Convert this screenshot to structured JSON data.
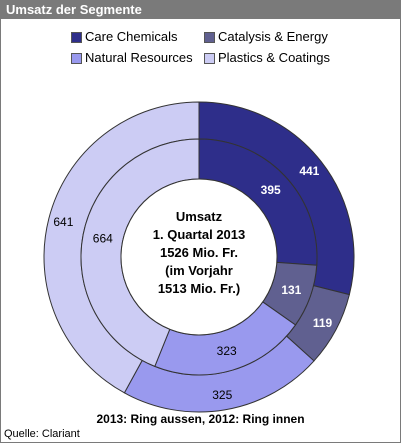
{
  "header": {
    "title": "Umsatz der Segmente"
  },
  "chart_data": {
    "type": "donut",
    "categories": [
      "Care Chemicals",
      "Catalysis & Energy",
      "Natural Resources",
      "Plastics & Coatings"
    ],
    "series": [
      {
        "name": "2013",
        "ring": "outer",
        "values": [
          441,
          119,
          325,
          641
        ]
      },
      {
        "name": "2012",
        "ring": "inner",
        "values": [
          395,
          131,
          323,
          664
        ]
      }
    ],
    "colors": [
      "#2e2e8a",
      "#606090",
      "#9999ee",
      "#ccccf4"
    ],
    "center_text": [
      "Umsatz",
      "1. Quartal 2013",
      "1526 Mio. Fr.",
      "(im Vorjahr",
      "1513 Mio. Fr.)"
    ],
    "legend_position": "top"
  },
  "footer": {
    "note": "2013: Ring aussen, 2012: Ring innen",
    "source": "Quelle: Clariant"
  }
}
